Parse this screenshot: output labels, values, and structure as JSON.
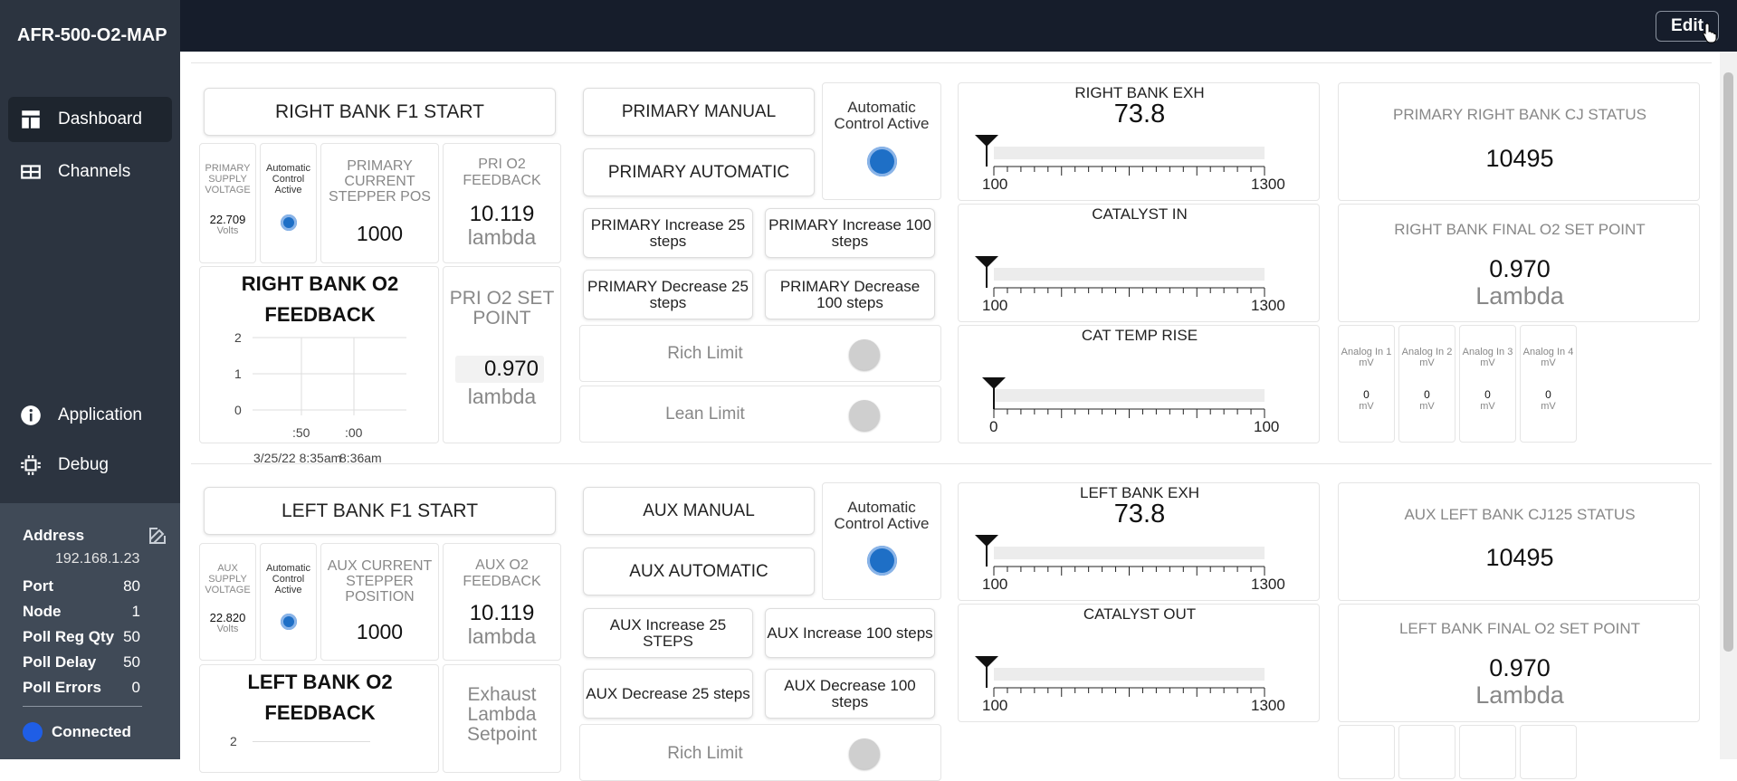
{
  "app": {
    "title": "AFR-500-O2-MAP",
    "edit_label": "Edit"
  },
  "nav": {
    "dashboard": "Dashboard",
    "channels": "Channels",
    "application": "Application",
    "debug": "Debug"
  },
  "info": {
    "address_label": "Address",
    "address": "192.168.1.23",
    "port_label": "Port",
    "port": "80",
    "node_label": "Node",
    "node": "1",
    "pollreg_label": "Poll Reg Qty",
    "pollreg": "50",
    "polldelay_label": "Poll Delay",
    "polldelay": "50",
    "pollerr_label": "Poll Errors",
    "pollerr": "0",
    "status": "Connected"
  },
  "right": {
    "start": "RIGHT BANK F1 START",
    "supply_label": "PRIMARY SUPPLY VOLTAGE",
    "supply_value": "22.709",
    "supply_unit": "Volts",
    "auto_label": "Automatic Control Active",
    "stepper_label": "PRIMARY CURRENT STEPPER POS",
    "stepper_value": "1000",
    "feedback_label": "PRI O2 FEEDBACK",
    "feedback_value": "10.119",
    "feedback_unit": "lambda",
    "chart_title": "RIGHT BANK O2 FEEDBACK",
    "setpoint_label": "PRI O2 SET POINT",
    "setpoint_value": "0.970",
    "setpoint_unit": "lambda",
    "manual": "PRIMARY MANUAL",
    "automatic": "PRIMARY AUTOMATIC",
    "auto_active": "Automatic Control Active",
    "inc25": "PRIMARY Increase 25 steps",
    "inc100": "PRIMARY Increase 100 steps",
    "dec25": "PRIMARY Decrease 25 steps",
    "dec100": "PRIMARY Decrease 100 steps",
    "rich": "Rich Limit",
    "lean": "Lean Limit",
    "g1_title": "RIGHT BANK EXH",
    "g1_value": "73.8",
    "g1_min": "100",
    "g1_max": "1300",
    "g2_title": "CATALYST IN",
    "g2_min": "100",
    "g2_max": "1300",
    "g3_title": "CAT TEMP RISE",
    "g3_min": "0",
    "g3_max": "100",
    "cj_label": "PRIMARY RIGHT BANK CJ STATUS",
    "cj_value": "10495",
    "final_label": "RIGHT BANK FINAL O2 SET POINT",
    "final_value": "0.970",
    "final_unit": "Lambda",
    "analog": [
      {
        "label": "Analog In 1 mV",
        "value": "0",
        "unit": "mV"
      },
      {
        "label": "Analog In 2 mV",
        "value": "0",
        "unit": "mV"
      },
      {
        "label": "Analog In 3 mV",
        "value": "0",
        "unit": "mV"
      },
      {
        "label": "Analog In 4 mV",
        "value": "0",
        "unit": "mV"
      }
    ]
  },
  "left": {
    "start": "LEFT BANK F1 START",
    "supply_label": "AUX SUPPLY VOLTAGE",
    "supply_value": "22.820",
    "supply_unit": "Volts",
    "auto_label": "Automatic Control Active",
    "stepper_label": "AUX CURRENT STEPPER POSITION",
    "stepper_value": "1000",
    "feedback_label": "AUX O2 FEEDBACK",
    "feedback_value": "10.119",
    "feedback_unit": "lambda",
    "chart_title": "LEFT BANK O2 FEEDBACK",
    "setpoint_label": "Exhaust Lambda Setpoint",
    "manual": "AUX MANUAL",
    "automatic": "AUX AUTOMATIC",
    "auto_active": "Automatic Control Active",
    "inc25": "AUX Increase 25 STEPS",
    "inc100": "AUX Increase 100 steps",
    "dec25": "AUX Decrease 25 steps",
    "dec100": "AUX Decrease 100 steps",
    "rich": "Rich Limit",
    "g1_title": "LEFT BANK EXH",
    "g1_value": "73.8",
    "g1_min": "100",
    "g1_max": "1300",
    "g2_title": "CATALYST OUT",
    "g2_min": "100",
    "g2_max": "1300",
    "cj_label": "AUX LEFT BANK CJ125 STATUS",
    "cj_value": "10495",
    "final_label": "LEFT BANK FINAL O2 SET POINT",
    "final_value": "0.970",
    "final_unit": "Lambda"
  },
  "chart_data": {
    "type": "line",
    "title": "RIGHT BANK O2 FEEDBACK",
    "y_ticks": [
      "2",
      "1",
      "0"
    ],
    "x_ticks": [
      ":50",
      ":00"
    ],
    "x_range": [
      "3/25/22 8:35am",
      "8:36am"
    ],
    "ylim": [
      0,
      2
    ],
    "grid": true,
    "series": []
  },
  "colors": {
    "sidebar": "#2c3440",
    "topbar": "#161d2b",
    "accent": "#1e6fc6",
    "info_panel": "#404a57"
  }
}
